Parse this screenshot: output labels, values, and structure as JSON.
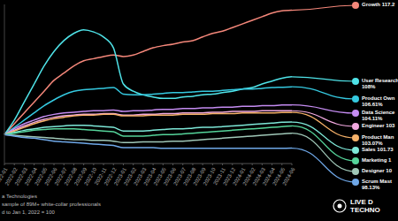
{
  "chart_data": {
    "type": "line",
    "x": [
      "2022-01",
      "2022-02",
      "2022-03",
      "2022-04",
      "2022-05",
      "2022-06",
      "2022-07",
      "2022-08",
      "2022-09",
      "2022-10",
      "2022-11",
      "2022-12",
      "2023-01",
      "2023-02",
      "2023-03",
      "2023-04",
      "2023-05",
      "2023-06",
      "2023-07",
      "2023-08",
      "2023-09",
      "2023-10",
      "2023-11",
      "2023-12",
      "2024-01",
      "2024-02",
      "2024-03",
      "2024-04",
      "2024-05",
      "2024-06"
    ],
    "ylim": [
      96,
      118
    ],
    "yticks": [],
    "tick_labels": "x",
    "series": [
      {
        "name": "Growth",
        "color": "#f4877a",
        "label": [
          "Growth 117.2"
        ],
        "values": [
          100,
          101.5,
          103,
          104.5,
          106,
          107.5,
          108.5,
          109.5,
          110.2,
          110.5,
          110.8,
          111,
          110.8,
          111,
          111.5,
          112,
          112.3,
          112.5,
          112.8,
          113,
          113.5,
          114,
          114.3,
          114.8,
          115.3,
          115.8,
          116.3,
          116.8,
          117.1,
          117.2
        ]
      },
      {
        "name": "User Research",
        "color": "#4fe3e8",
        "label": [
          "User Research",
          "108%"
        ],
        "values": [
          100,
          102,
          104.5,
          107,
          109.5,
          111.5,
          113,
          114,
          114.5,
          114.2,
          113.5,
          112,
          107,
          106,
          105.5,
          105.2,
          105,
          105,
          105.2,
          105.3,
          105.5,
          105.6,
          105.8,
          106,
          106.3,
          106.5,
          107,
          107.4,
          107.8,
          108
        ]
      },
      {
        "name": "Product Own",
        "color": "#35c9e0",
        "label": [
          "Product Own",
          "106.61%"
        ],
        "values": [
          100,
          101,
          102,
          103,
          104,
          104.8,
          105.5,
          106,
          106.2,
          106.3,
          106.4,
          106.5,
          105.6,
          105.5,
          105.5,
          105.6,
          105.7,
          105.8,
          105.8,
          105.9,
          106,
          106,
          106.1,
          106.2,
          106.3,
          106.3,
          106.4,
          106.5,
          106.55,
          106.61
        ]
      },
      {
        "name": "Data Science",
        "color": "#c58cf2",
        "label": [
          "Data Science",
          "104.11%"
        ],
        "values": [
          100,
          100.8,
          101.5,
          102,
          102.5,
          102.8,
          103,
          103.1,
          103.2,
          103.3,
          103.3,
          103.4,
          103.2,
          103.3,
          103.3,
          103.4,
          103.5,
          103.5,
          103.6,
          103.6,
          103.7,
          103.7,
          103.8,
          103.8,
          103.9,
          103.9,
          104,
          104,
          104.1,
          104.11
        ]
      },
      {
        "name": "Engineer",
        "color": "#f2a9e0",
        "label": [
          "Engineer 103"
        ],
        "values": [
          100,
          100.6,
          101.2,
          101.7,
          102.1,
          102.4,
          102.6,
          102.7,
          102.8,
          102.8,
          102.9,
          102.9,
          102.7,
          102.7,
          102.8,
          102.8,
          102.9,
          102.9,
          103,
          103,
          103,
          103.1,
          103.1,
          103.2,
          103.2,
          103.2,
          103.3,
          103.3,
          103.3,
          103.3
        ]
      },
      {
        "name": "Product Man",
        "color": "#f7b26a",
        "label": [
          "Product Man",
          "103.07%"
        ],
        "values": [
          100,
          100.5,
          101,
          101.5,
          101.9,
          102.2,
          102.4,
          102.6,
          102.7,
          102.7,
          102.8,
          102.8,
          102.6,
          102.6,
          102.6,
          102.7,
          102.7,
          102.7,
          102.8,
          102.8,
          102.8,
          102.9,
          102.9,
          102.9,
          103,
          103,
          103,
          103,
          103.05,
          103.07
        ]
      },
      {
        "name": "Sales",
        "color": "#7ee8d8",
        "label": [
          "Sales 101.73"
        ],
        "values": [
          100,
          100.3,
          100.6,
          100.8,
          101,
          101.1,
          101.2,
          101.3,
          101.3,
          101.2,
          101.1,
          101,
          100.5,
          100.5,
          100.5,
          100.6,
          100.7,
          100.8,
          100.8,
          100.9,
          101,
          101,
          101.1,
          101.2,
          101.3,
          101.4,
          101.5,
          101.6,
          101.7,
          101.73
        ]
      },
      {
        "name": "Marketing",
        "color": "#55d49a",
        "label": [
          "Marketing 1"
        ],
        "values": [
          100,
          100.2,
          100.4,
          100.6,
          100.7,
          100.8,
          100.8,
          100.8,
          100.7,
          100.6,
          100.5,
          100.4,
          99.8,
          99.8,
          99.8,
          99.9,
          100,
          100,
          100.1,
          100.2,
          100.3,
          100.4,
          100.5,
          100.6,
          100.7,
          100.8,
          100.9,
          101,
          101.1,
          101.2
        ]
      },
      {
        "name": "Designer",
        "color": "#a0c8b8",
        "label": [
          "Designer 10"
        ],
        "values": [
          100,
          99.9,
          99.8,
          99.7,
          99.6,
          99.5,
          99.4,
          99.3,
          99.3,
          99.2,
          99.2,
          99.1,
          98.9,
          98.9,
          99,
          99,
          99,
          99.1,
          99.1,
          99.2,
          99.3,
          99.4,
          99.5,
          99.6,
          99.7,
          99.8,
          99.9,
          100,
          100.1,
          100.2
        ]
      },
      {
        "name": "Scrum Mast",
        "color": "#6fa8e8",
        "label": [
          "Scrum Mast",
          "98.13%"
        ],
        "values": [
          100,
          99.8,
          99.6,
          99.5,
          99.3,
          99.1,
          99,
          98.9,
          98.8,
          98.7,
          98.6,
          98.5,
          98.2,
          98.2,
          98.2,
          98.2,
          98.1,
          98.1,
          98.1,
          98.1,
          98.1,
          98.1,
          98.1,
          98.1,
          98.1,
          98.1,
          98.1,
          98.1,
          98.1,
          98.13
        ]
      }
    ],
    "footnotes": [
      "a Technologies",
      "sample of 89M+ white-collar professionals",
      "d to Jan 1, 2022 = 100"
    ],
    "logo": [
      "LIVE D",
      "TECHNO"
    ]
  }
}
